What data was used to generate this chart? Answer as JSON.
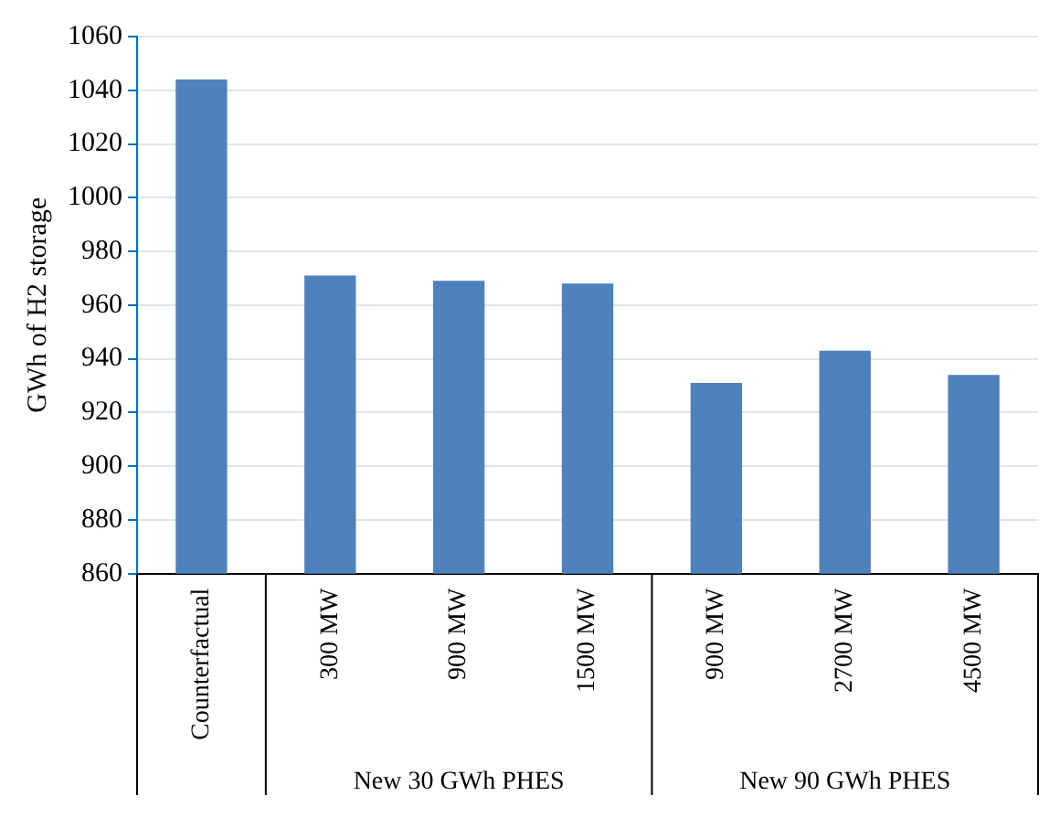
{
  "chart_data": {
    "type": "bar",
    "ylabel": "GWh of H2 storage",
    "categories": [
      "Counterfactual",
      "300 MW",
      "900 MW",
      "1500 MW",
      "900 MW",
      "2700 MW",
      "4500 MW"
    ],
    "values": [
      1044,
      971,
      969,
      968,
      931,
      943,
      934
    ],
    "color": "#4f81bd",
    "ylim": [
      860,
      1060
    ],
    "yticks": [
      860,
      880,
      900,
      920,
      940,
      960,
      980,
      1000,
      1020,
      1040,
      1060
    ],
    "grid": "y",
    "annotations": [
      "New 30 GWh PHES",
      "New 90 GWh PHES"
    ]
  }
}
